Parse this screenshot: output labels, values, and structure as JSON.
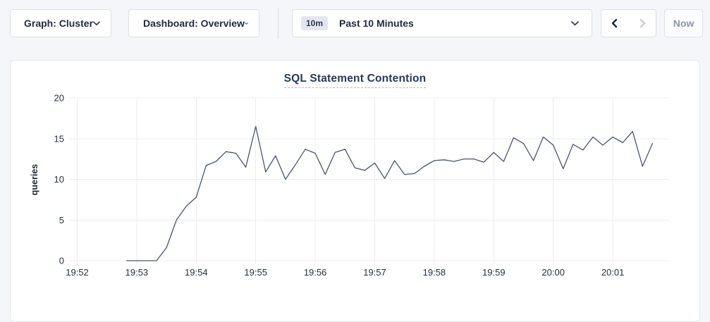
{
  "toolbar": {
    "graph_dropdown_label": "Graph: Cluster",
    "dashboard_dropdown_label": "Dashboard: Overview",
    "time_window_badge": "10m",
    "time_window_label": "Past 10 Minutes",
    "now_button_label": "Now"
  },
  "chart_data": {
    "type": "line",
    "title": "SQL Statement Contention",
    "ylabel": "queries",
    "xlabel": "",
    "ylim": [
      0,
      20
    ],
    "y_ticks": [
      0,
      5,
      10,
      15,
      20
    ],
    "x_ticks": [
      "19:52",
      "19:53",
      "19:54",
      "19:55",
      "19:56",
      "19:57",
      "19:58",
      "19:59",
      "20:00",
      "20:01"
    ],
    "grid": true,
    "legend_position": "none",
    "line_color": "#475470",
    "series": [
      {
        "name": "SQL Statement Contention",
        "start_time": "19:52:50",
        "interval_seconds": 10,
        "values": [
          0,
          0,
          0,
          0,
          1.6,
          5.0,
          6.7,
          7.8,
          11.7,
          12.2,
          13.4,
          13.2,
          11.5,
          16.5,
          10.9,
          12.9,
          10.0,
          11.8,
          13.7,
          13.2,
          10.6,
          13.3,
          13.7,
          11.4,
          11.1,
          12.0,
          10.1,
          12.3,
          10.6,
          10.7,
          11.6,
          12.3,
          12.4,
          12.2,
          12.5,
          12.5,
          12.1,
          13.3,
          12.2,
          15.1,
          14.4,
          12.3,
          15.2,
          14.2,
          11.3,
          14.3,
          13.6,
          15.2,
          14.2,
          15.2,
          14.5,
          15.9,
          11.6,
          14.4
        ]
      }
    ]
  },
  "colors": {
    "page_bg": "#f4f6fa",
    "card_bg": "#ffffff",
    "title_text": "#25395f",
    "line": "#475470",
    "grid": "#ececf0"
  }
}
